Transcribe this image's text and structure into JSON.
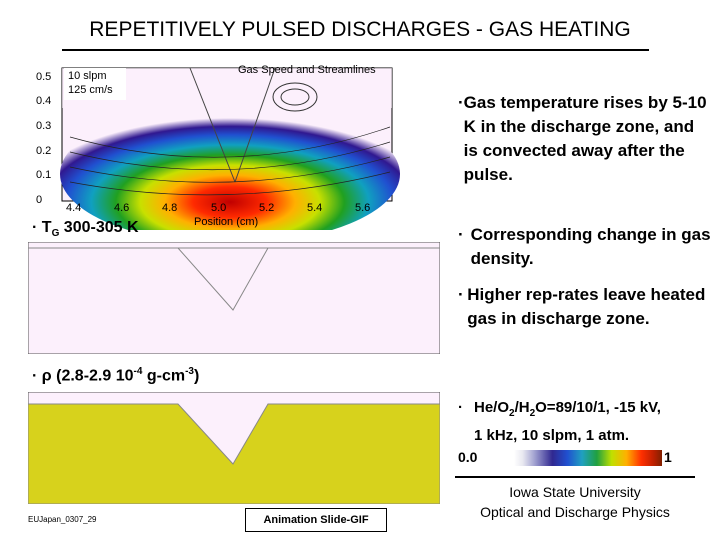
{
  "title": "REPETITIVELY PULSED DISCHARGES - GAS HEATING",
  "plot": {
    "title": "Gas Speed and Streamlines",
    "legend_lines": [
      "10 slpm",
      "125 cm/s"
    ],
    "xlabel": "Position (cm)",
    "xticks": [
      "4.4",
      "4.6",
      "4.8",
      "5.0",
      "5.2",
      "5.4",
      "5.6"
    ],
    "yticks": [
      "0.5",
      "0.4",
      "0.3",
      "0.2",
      "0.1",
      "0"
    ]
  },
  "bullets": [
    "Gas temperature rises by 5-10 K in the discharge zone, and is convected away after the pulse.",
    "Corresponding change in gas density.",
    "Higher rep-rates leave heated gas in discharge zone."
  ],
  "conditions": {
    "prefix": "He/O",
    "sub1": "2",
    "mid1": "/H",
    "sub2": "2",
    "suffix": "O=89/10/1, -15 kV,",
    "line2": "1 kHz, 10 slpm, 1 atm."
  },
  "tg_label": {
    "main": "T",
    "sub": "G",
    "rest": " 300-305 K"
  },
  "rho_label": {
    "symbol": "ρ",
    "open": " (2.8-2.9 10",
    "exp": "-4",
    "unit": " g-cm",
    "exp2": "-3",
    "close": ")"
  },
  "colorbar": {
    "min": "0.0",
    "max": "1"
  },
  "university": {
    "name": "Iowa State University",
    "dept": "Optical and Discharge Physics"
  },
  "footer_id": "EUJapan_0307_29",
  "animation_label": "Animation Slide-GIF",
  "bullet_glyph": "·",
  "colors": {
    "panel": "#fcf0fc",
    "density_fill": "#d7d21c",
    "accent": "#000000"
  }
}
